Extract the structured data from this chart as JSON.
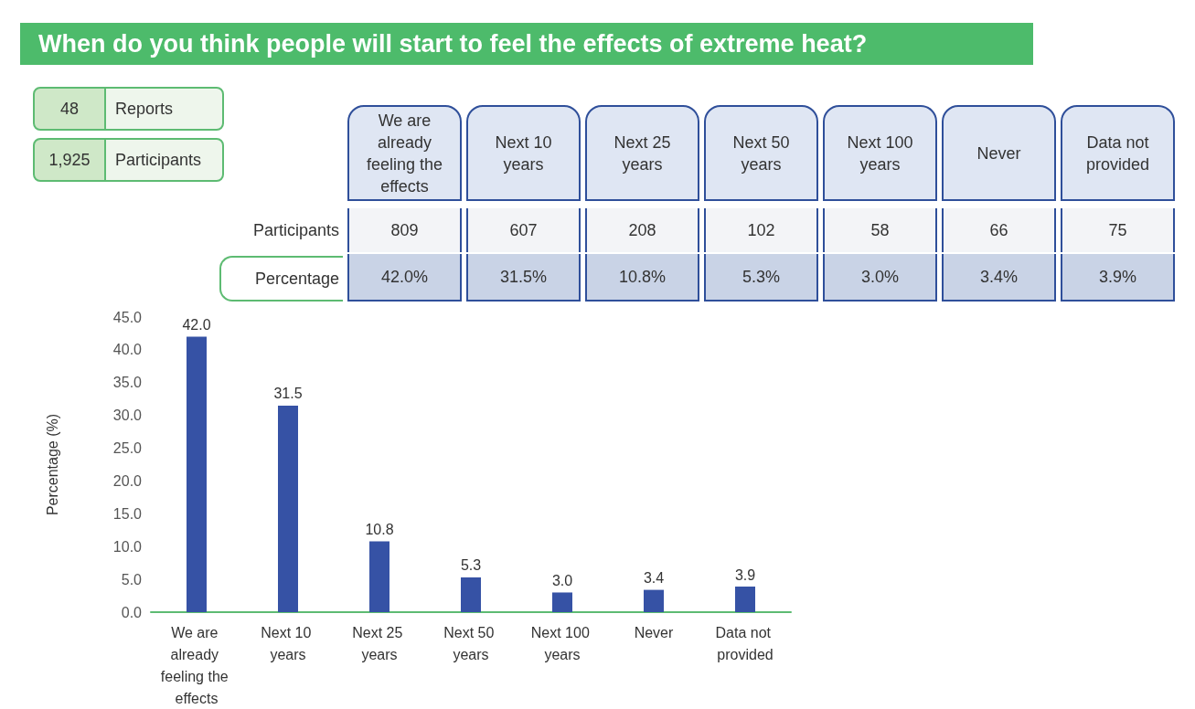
{
  "chart_data": {
    "type": "bar",
    "title": "When do you think people will start to feel the effects of extreme heat?",
    "categories": [
      "We are already feeling the effects",
      "Next 10 years",
      "Next 25 years",
      "Next 50 years",
      "Next 100 years",
      "Never",
      "Data not provided"
    ],
    "values": [
      42.0,
      31.5,
      10.8,
      5.3,
      3.0,
      3.4,
      3.9
    ],
    "value_labels": [
      "42.0",
      "31.5",
      "10.8",
      "5.3",
      "3.0",
      "3.4",
      "3.9"
    ],
    "color": "#3652a5",
    "ylabel": "Percentage (%)",
    "ylim": [
      0,
      45
    ],
    "yticks": [
      {
        "value": 0,
        "label": "0.0"
      },
      {
        "value": 5,
        "label": "5.0"
      },
      {
        "value": 10,
        "label": "10.0"
      },
      {
        "value": 15,
        "label": "15.0"
      },
      {
        "value": 20,
        "label": "20.0"
      },
      {
        "value": 25,
        "label": "25.0"
      },
      {
        "value": 30,
        "label": "30.0"
      },
      {
        "value": 35,
        "label": "35.0"
      },
      {
        "value": 40,
        "label": "40.0"
      },
      {
        "value": 45,
        "label": "45.0"
      }
    ],
    "grid": false,
    "annotations": [
      "48",
      "Reports",
      "1,925",
      "Participants",
      "Participants",
      "809",
      "607",
      "208",
      "102",
      "58",
      "66",
      "75",
      "Percentage",
      "42.0%",
      "31.5%",
      "10.8%",
      "5.3%",
      "3.0%",
      "3.4%",
      "3.9%"
    ]
  }
}
